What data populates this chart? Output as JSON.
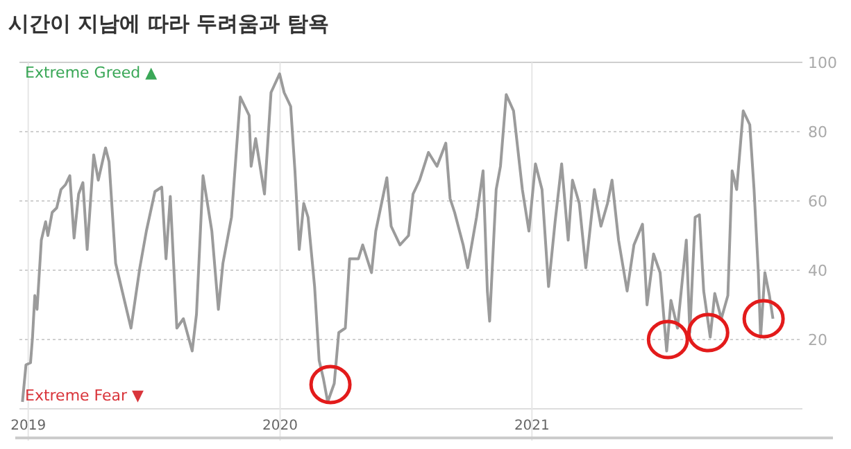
{
  "chart_data": {
    "type": "line",
    "title": "시간이 지남에 따라 두려움과 탐욕",
    "annotations": [
      "Extreme Greed ▲",
      "Extreme Fear ▼"
    ],
    "x": [
      2018.977,
      2018.991,
      2019.009,
      2019.017,
      2019.026,
      2019.035,
      2019.052,
      2019.069,
      2019.078,
      2019.095,
      2019.113,
      2019.13,
      2019.148,
      2019.165,
      2019.182,
      2019.2,
      2019.217,
      2019.234,
      2019.26,
      2019.278,
      2019.307,
      2019.321,
      2019.347,
      2019.373,
      2019.408,
      2019.443,
      2019.469,
      2019.503,
      2019.53,
      2019.547,
      2019.564,
      2019.59,
      2019.616,
      2019.651,
      2019.668,
      2019.694,
      2019.729,
      2019.755,
      2019.773,
      2019.807,
      2019.842,
      2019.877,
      2019.885,
      2019.903,
      2019.938,
      2019.964,
      2019.998,
      2020.016,
      2020.042,
      2020.059,
      2020.076,
      2020.094,
      2020.111,
      2020.137,
      2020.155,
      2020.172,
      2020.189,
      2020.215,
      2020.233,
      2020.259,
      2020.276,
      2020.311,
      2020.328,
      2020.363,
      2020.38,
      2020.424,
      2020.441,
      2020.476,
      2020.51,
      2020.528,
      2020.554,
      2020.589,
      2020.623,
      2020.658,
      2020.675,
      2020.693,
      2020.727,
      2020.745,
      2020.78,
      2020.806,
      2020.823,
      2020.832,
      2020.858,
      2020.875,
      2020.898,
      2020.927,
      2020.962,
      2020.988,
      2021.014,
      2021.04,
      2021.066,
      2021.092,
      2021.118,
      2021.144,
      2021.161,
      2021.188,
      2021.214,
      2021.248,
      2021.274,
      2021.3,
      2021.318,
      2021.344,
      2021.378,
      2021.405,
      2021.439,
      2021.457,
      2021.483,
      2021.509,
      2021.535,
      2021.552,
      2021.578,
      2021.613,
      2021.627,
      2021.648,
      2021.665,
      2021.682,
      2021.708,
      2021.726,
      2021.752,
      2021.778,
      2021.795,
      2021.813,
      2021.839,
      2021.865,
      2021.882,
      2021.899,
      2021.908,
      2021.925,
      2021.943,
      2021.957
    ],
    "series": [
      {
        "color": "#9b9b9b",
        "values": [
          2,
          12.7,
          13.3,
          20.7,
          32.7,
          28.7,
          48.7,
          54,
          50,
          56.7,
          58,
          63.3,
          64.7,
          67.3,
          49.3,
          62,
          65.3,
          46,
          73.3,
          66,
          75.3,
          71.3,
          42,
          34,
          23.3,
          40.7,
          51.3,
          62.7,
          64,
          43.3,
          61.3,
          23.3,
          26,
          16.7,
          27.3,
          67.3,
          51.3,
          28.7,
          42,
          55.3,
          90,
          84.7,
          70,
          78,
          62,
          91.3,
          96.7,
          91.3,
          87.3,
          68.7,
          46,
          59.3,
          55.3,
          35.3,
          14,
          8.7,
          2,
          7.3,
          22,
          23.3,
          43.3,
          43.3,
          47.3,
          39.3,
          51.3,
          66.7,
          52.7,
          47.3,
          50,
          62,
          66,
          74,
          70,
          76.7,
          60.7,
          56.7,
          47.3,
          40.7,
          55.3,
          68.7,
          34,
          25.3,
          63.3,
          70,
          90.7,
          86,
          63.3,
          51.3,
          70.7,
          63.3,
          35.3,
          54,
          70.7,
          48.7,
          66,
          59.3,
          40.7,
          63.3,
          52.7,
          59.3,
          66,
          48.7,
          34,
          47.3,
          53.3,
          30,
          44.7,
          39.3,
          16.7,
          31.3,
          23.3,
          48.7,
          22,
          55.3,
          56,
          34,
          20.7,
          33.3,
          26,
          32.7,
          68.7,
          63.3,
          86,
          82,
          63.3,
          39.3,
          20.7,
          39.3,
          32.7,
          26
        ]
      }
    ],
    "xlim": [
      2018.965,
      2022.074
    ],
    "xticks": [
      2019,
      2020,
      2021
    ],
    "ylim": [
      0,
      100
    ],
    "yticks": [
      20,
      40,
      60,
      80,
      100
    ],
    "grid": true,
    "marker": "none",
    "line_style": "solid"
  }
}
